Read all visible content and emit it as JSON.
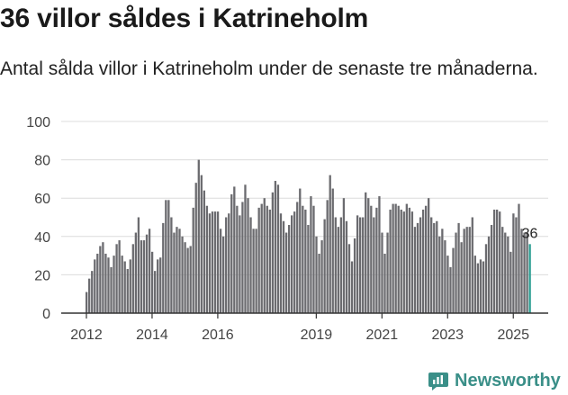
{
  "page": {
    "title": "36 villor såldes i Katrineholm",
    "subtitle": "Antal sålda villor i Katrineholm under de senaste tre månaderna.",
    "logo": "Newsworthy"
  },
  "colors": {
    "bar": "#6b6b6f",
    "highlight": "#2a9d91",
    "grid": "#dcdcdc",
    "axis": "#333333",
    "text": "#444444",
    "brand": "#3a8f88"
  },
  "chart_data": {
    "type": "bar",
    "title": "36 villor såldes i Katrineholm",
    "xlabel": "",
    "ylabel": "",
    "ylim": [
      0,
      100
    ],
    "yticks": [
      0,
      20,
      40,
      60,
      80,
      100
    ],
    "xticks": [
      {
        "label": "2012",
        "index": 0
      },
      {
        "label": "2014",
        "index": 24
      },
      {
        "label": "2016",
        "index": 48
      },
      {
        "label": "2019",
        "index": 84
      },
      {
        "label": "2021",
        "index": 108
      },
      {
        "label": "2023",
        "index": 132
      },
      {
        "label": "2025",
        "index": 156
      }
    ],
    "start": "2012-01",
    "values": [
      11,
      18,
      22,
      28,
      31,
      35,
      37,
      31,
      29,
      24,
      30,
      36,
      38,
      30,
      27,
      23,
      28,
      36,
      42,
      50,
      38,
      38,
      41,
      44,
      32,
      22,
      28,
      29,
      47,
      59,
      59,
      50,
      42,
      45,
      44,
      40,
      37,
      34,
      35,
      55,
      68,
      80,
      72,
      64,
      56,
      52,
      53,
      53,
      53,
      44,
      40,
      50,
      52,
      62,
      66,
      56,
      51,
      58,
      67,
      60,
      50,
      44,
      44,
      55,
      57,
      60,
      56,
      54,
      63,
      69,
      67,
      52,
      48,
      42,
      46,
      51,
      53,
      58,
      65,
      56,
      54,
      46,
      61,
      56,
      40,
      31,
      38,
      49,
      59,
      72,
      65,
      50,
      45,
      50,
      60,
      48,
      36,
      27,
      39,
      51,
      50,
      50,
      63,
      60,
      56,
      50,
      55,
      61,
      42,
      31,
      42,
      54,
      57,
      57,
      56,
      54,
      53,
      57,
      55,
      53,
      45,
      47,
      50,
      54,
      56,
      60,
      50,
      47,
      48,
      40,
      44,
      38,
      30,
      24,
      34,
      42,
      47,
      37,
      44,
      45,
      45,
      50,
      30,
      26,
      28,
      27,
      36,
      40,
      46,
      54,
      54,
      53,
      45,
      42,
      40,
      32,
      52,
      50,
      57,
      44,
      42,
      42,
      36
    ],
    "last_label": "36",
    "highlight": "last"
  }
}
